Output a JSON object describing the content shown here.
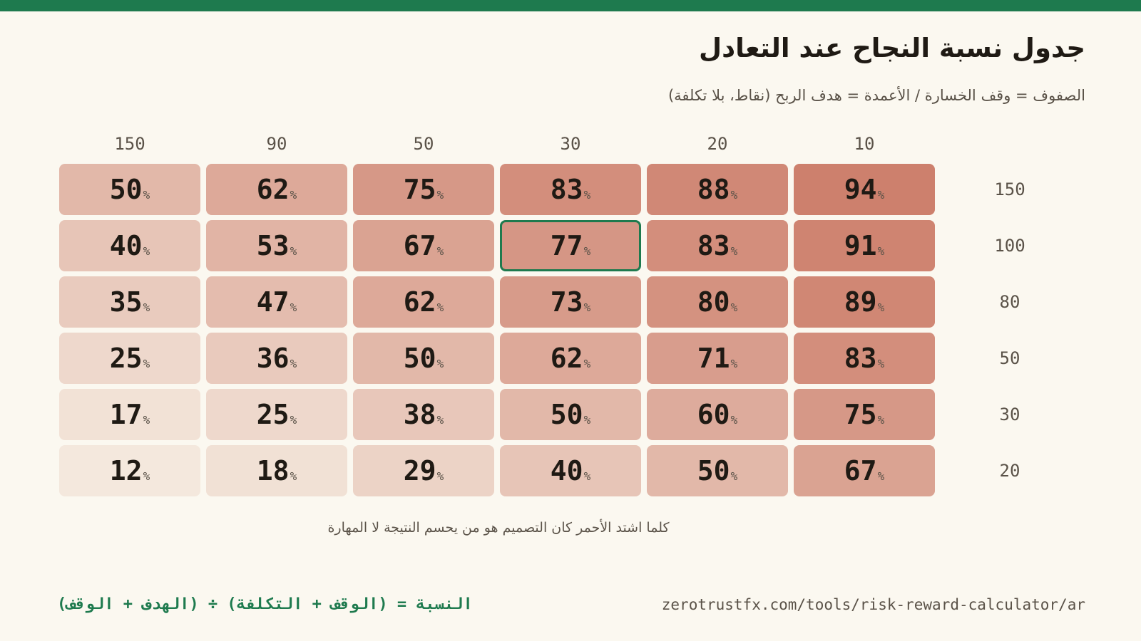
{
  "header": {
    "title": "جدول نسبة النجاح عند التعادل",
    "subtitle": "الصفوف = وقف الخسارة / الأعمدة = هدف الربح (نقاط، بلا تكلفة)"
  },
  "colors": {
    "accent": "#1e7a4e",
    "background": "#fbf8f0",
    "cell_low": "#f5ebe0",
    "cell_high": "#cd7f6c"
  },
  "chart_data": {
    "type": "heatmap",
    "title": "جدول نسبة النجاح عند التعادل",
    "subtitle": "الصفوف = وقف الخسارة / الأعمدة = هدف الربح (نقاط، بلا تكلفة)",
    "columns": [
      "10",
      "20",
      "30",
      "50",
      "90",
      "150"
    ],
    "rows": [
      "150",
      "100",
      "80",
      "50",
      "30",
      "20"
    ],
    "unit": "%",
    "values": [
      [
        94,
        88,
        83,
        75,
        62,
        50
      ],
      [
        91,
        83,
        77,
        67,
        53,
        40
      ],
      [
        89,
        80,
        73,
        62,
        47,
        35
      ],
      [
        83,
        71,
        62,
        50,
        36,
        25
      ],
      [
        75,
        60,
        50,
        38,
        25,
        17
      ],
      [
        67,
        50,
        40,
        29,
        18,
        12
      ]
    ],
    "highlight": {
      "row": "100",
      "column": "30",
      "value": 77
    }
  },
  "footer": {
    "note": "كلما اشتد الأحمر كان التصميم هو من يحسم النتيجة لا المهارة",
    "formula": "النسبة = (الوقف + التكلفة) ÷ (الهدف + الوقف)",
    "url": "zerotrustfx.com/tools/risk-reward-calculator/ar"
  }
}
